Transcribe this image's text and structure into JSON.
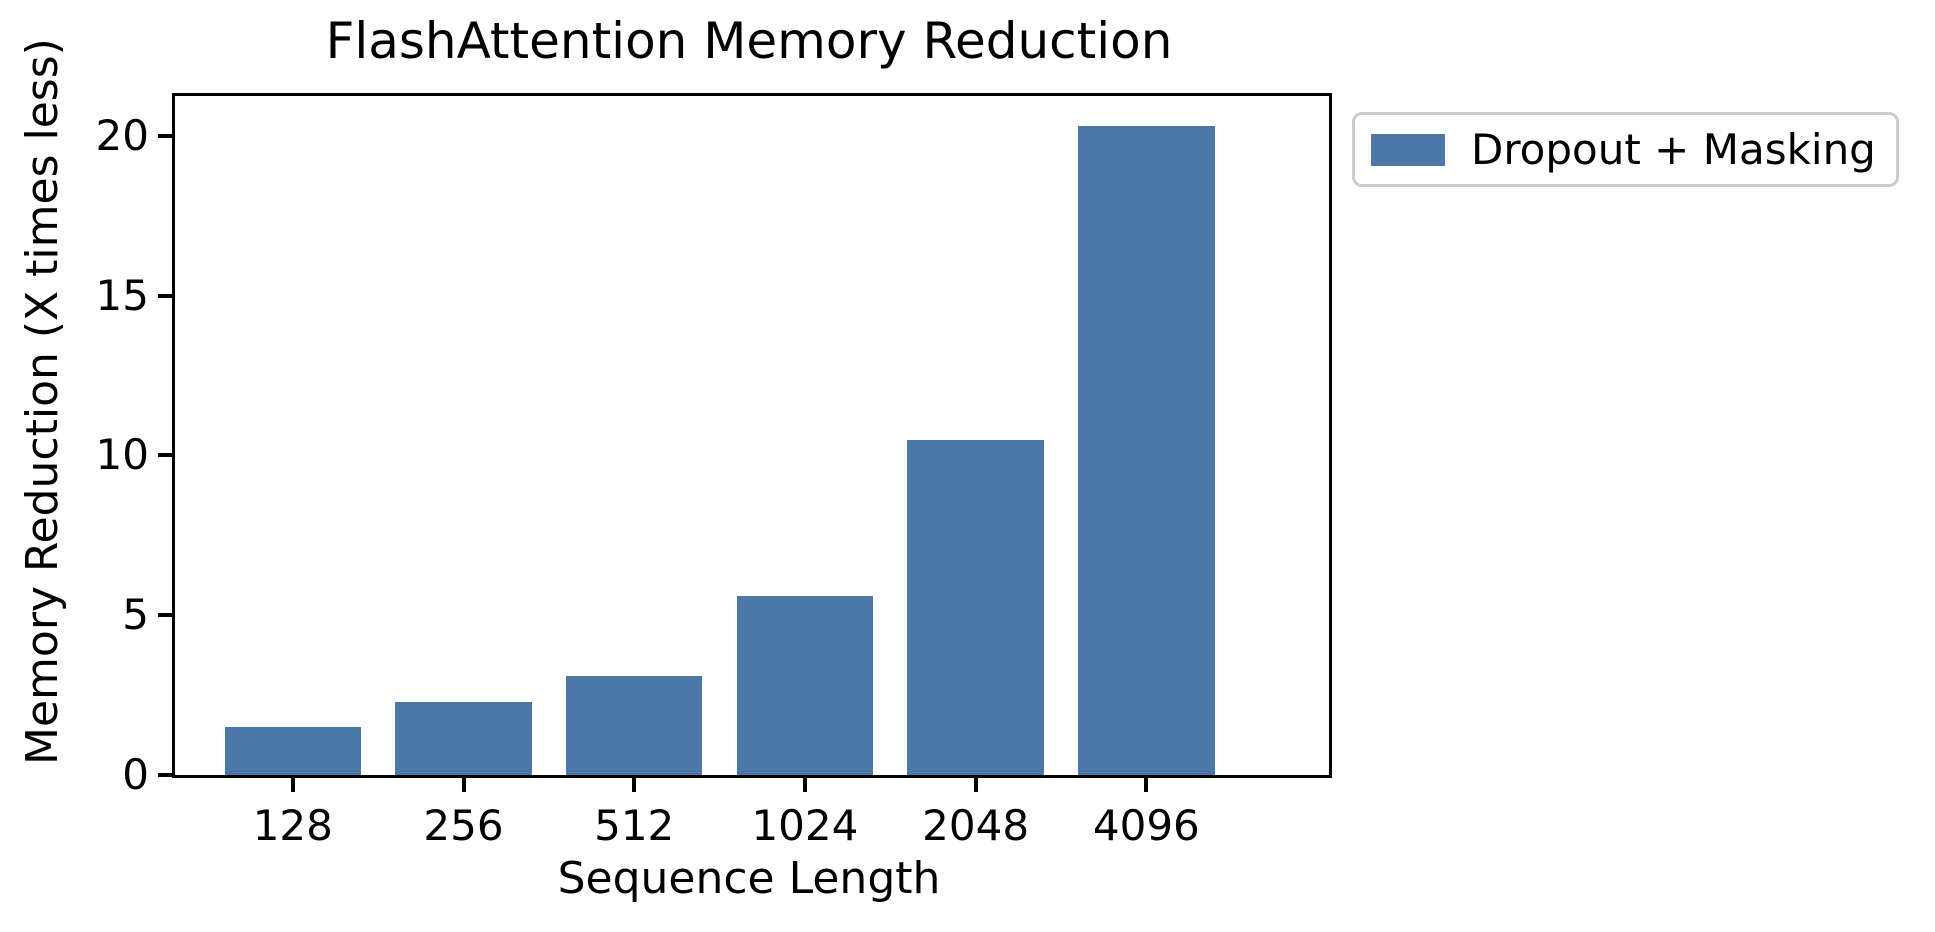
{
  "title": "FlashAttention Memory Reduction",
  "axes": {
    "xlabel": "Sequence Length",
    "ylabel": "Memory Reduction (X times less)"
  },
  "legend": {
    "label": "Dropout + Masking"
  },
  "colors": {
    "bar": "#4C78A8",
    "axis": "#000000",
    "legend_border": "#cccccc",
    "background": "#ffffff"
  },
  "chart_data": {
    "type": "bar",
    "title": "FlashAttention Memory Reduction",
    "xlabel": "Sequence Length",
    "ylabel": "Memory Reduction (X times less)",
    "categories": [
      "128",
      "256",
      "512",
      "1024",
      "2048",
      "4096"
    ],
    "series": [
      {
        "name": "Dropout + Masking",
        "values": [
          1.5,
          2.3,
          3.1,
          5.6,
          10.5,
          20.3
        ]
      }
    ],
    "yticks": [
      0,
      5,
      10,
      15,
      20
    ],
    "ylim": [
      0,
      21.25
    ],
    "bar_color": "#4C78A8",
    "grid": false,
    "legend_position": "outside upper right"
  }
}
